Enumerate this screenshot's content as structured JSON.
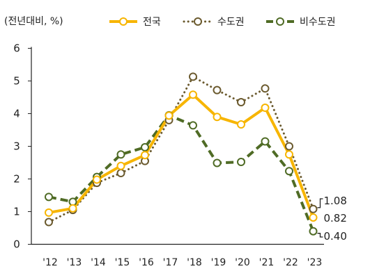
{
  "chart_data": {
    "type": "line",
    "unit_label": "(전년대비, %)",
    "categories": [
      "'12",
      "'13",
      "'14",
      "'15",
      "'16",
      "'17",
      "'18",
      "'19",
      "'20",
      "'21",
      "'22",
      "'23"
    ],
    "ylim": [
      0,
      6
    ],
    "yticks": [
      "0",
      "1",
      "2",
      "3",
      "4",
      "5",
      "6"
    ],
    "grid": false,
    "legend_position": "top",
    "series": [
      {
        "name": "전국",
        "style": "solid",
        "color": "#f7b500",
        "values": [
          0.97,
          1.1,
          1.98,
          2.4,
          2.73,
          3.94,
          4.58,
          3.9,
          3.67,
          4.18,
          2.75,
          0.82
        ]
      },
      {
        "name": "수도권",
        "style": "dotted",
        "color": "#6b5a2e",
        "values": [
          0.68,
          1.05,
          1.88,
          2.18,
          2.55,
          3.8,
          5.13,
          4.72,
          4.35,
          4.77,
          3.0,
          1.08
        ]
      },
      {
        "name": "비수도권",
        "style": "dashed",
        "color": "#4f6b25",
        "values": [
          1.45,
          1.3,
          2.06,
          2.75,
          2.97,
          3.95,
          3.64,
          2.49,
          2.52,
          3.15,
          2.24,
          0.4
        ]
      }
    ],
    "annotations": [
      "1.08",
      "0.82",
      "0.40"
    ]
  }
}
